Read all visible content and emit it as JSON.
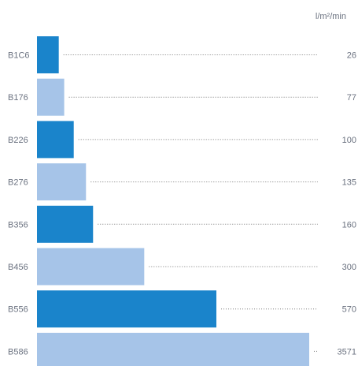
{
  "chart_data": {
    "type": "bar",
    "orientation": "horizontal",
    "title": "",
    "xlabel": "",
    "ylabel": "",
    "unit": "l/m²/min",
    "categories": [
      "B1C6",
      "B176",
      "B226",
      "B276",
      "B356",
      "B456",
      "B556",
      "B586"
    ],
    "values": [
      26,
      77,
      100,
      135,
      160,
      300,
      570,
      3571
    ],
    "bar_lengths_relative": [
      0.08,
      0.1,
      0.135,
      0.18,
      0.206,
      0.394,
      0.659,
      1.0
    ],
    "colors": [
      "#1a84cb",
      "#a6c4e8",
      "#1a84cb",
      "#a6c4e8",
      "#1a84cb",
      "#a6c4e8",
      "#1a84cb",
      "#a6c4e8"
    ],
    "leader_lines": "dotted",
    "grid": false,
    "legend": "none"
  }
}
